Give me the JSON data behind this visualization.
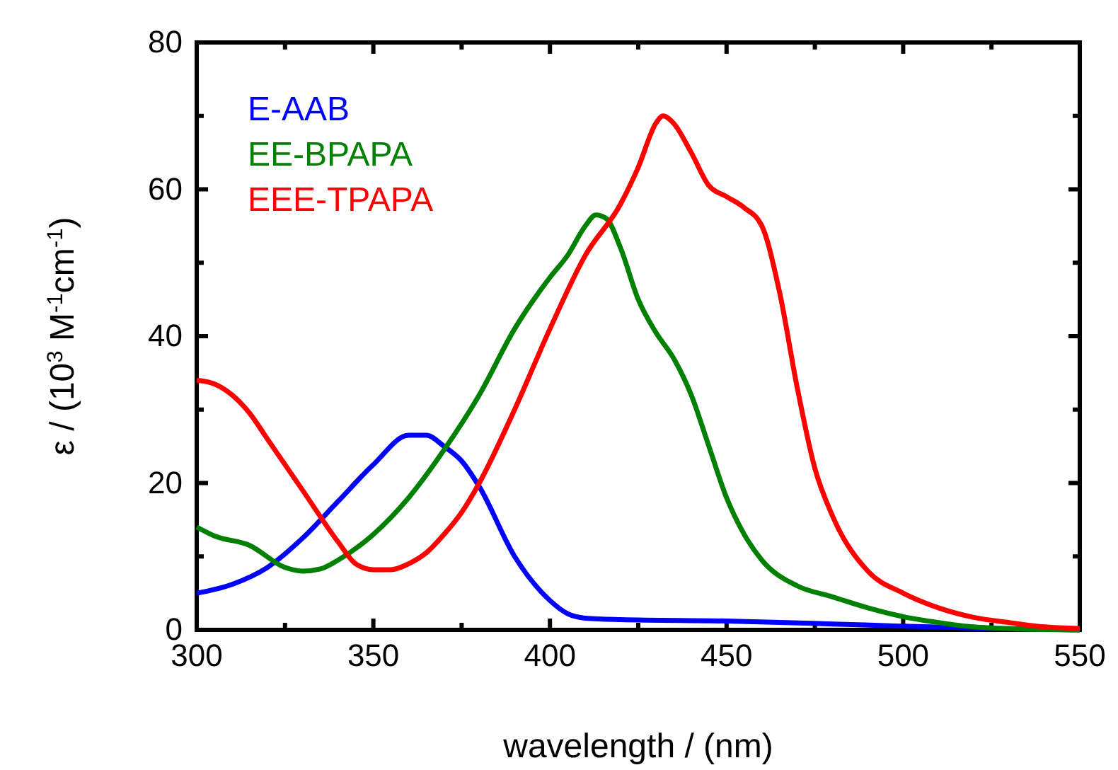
{
  "chart_data": {
    "type": "line",
    "xlabel": "wavelength / (nm)",
    "ylabel": "ε / (10$^{3}$ M$^{-1}$cm$^{-1}$)",
    "xlim": [
      300,
      550
    ],
    "xticks": [
      300,
      350,
      400,
      450,
      500,
      550
    ],
    "ylim": [
      0,
      80
    ],
    "yticks": [
      0,
      20,
      40,
      60,
      80
    ],
    "legend": "top left",
    "grid": false,
    "line_style": "solid",
    "marker": "none",
    "series": [
      {
        "name": "E-AAB",
        "color": "#0000ff",
        "x": [
          300,
          310,
          320,
          330,
          340,
          350,
          360,
          365,
          370,
          375,
          380,
          390,
          400,
          405,
          410,
          420,
          450,
          480,
          500,
          525,
          550
        ],
        "values": [
          5,
          6.2,
          8.5,
          12.5,
          17.5,
          22.5,
          26.5,
          26.5,
          25,
          23,
          19.5,
          10,
          4,
          2.2,
          1.6,
          1.4,
          1.2,
          0.8,
          0.5,
          0.2,
          0
        ]
      },
      {
        "name": "EE-BPAPA",
        "color": "#008000",
        "x": [
          300,
          305,
          315,
          325,
          330,
          335,
          340,
          350,
          360,
          370,
          380,
          390,
          400,
          405,
          410,
          413,
          416,
          420,
          425,
          430,
          435,
          440,
          445,
          450,
          455,
          460,
          470,
          480,
          490,
          500,
          510,
          520,
          535,
          550
        ],
        "values": [
          14,
          12.8,
          11.5,
          8.5,
          8,
          8.3,
          9.5,
          13,
          18,
          24.5,
          32,
          41,
          48,
          51,
          55,
          56.5,
          56,
          52,
          45,
          40.5,
          37,
          32,
          25,
          18,
          13,
          9.5,
          6,
          4.5,
          3,
          1.8,
          1,
          0.4,
          0.1,
          0
        ]
      },
      {
        "name": "EEE-TPAPA",
        "color": "#ff0000",
        "x": [
          300,
          305,
          310,
          315,
          320,
          330,
          340,
          345,
          350,
          355,
          360,
          365,
          370,
          375,
          380,
          390,
          400,
          410,
          420,
          425,
          430,
          432,
          435,
          440,
          445,
          450,
          455,
          460,
          465,
          470,
          475,
          480,
          490,
          500,
          510,
          520,
          530,
          540,
          550
        ],
        "values": [
          34,
          33.5,
          32,
          29.5,
          26,
          19,
          12,
          9,
          8.2,
          8.2,
          9,
          10.5,
          13,
          16,
          20,
          30,
          41,
          51,
          58,
          63,
          69,
          70,
          69,
          65,
          60.5,
          59,
          57.5,
          55,
          46,
          33,
          22,
          15.5,
          8,
          5,
          3,
          1.7,
          1,
          0.4,
          0.2
        ]
      }
    ]
  }
}
